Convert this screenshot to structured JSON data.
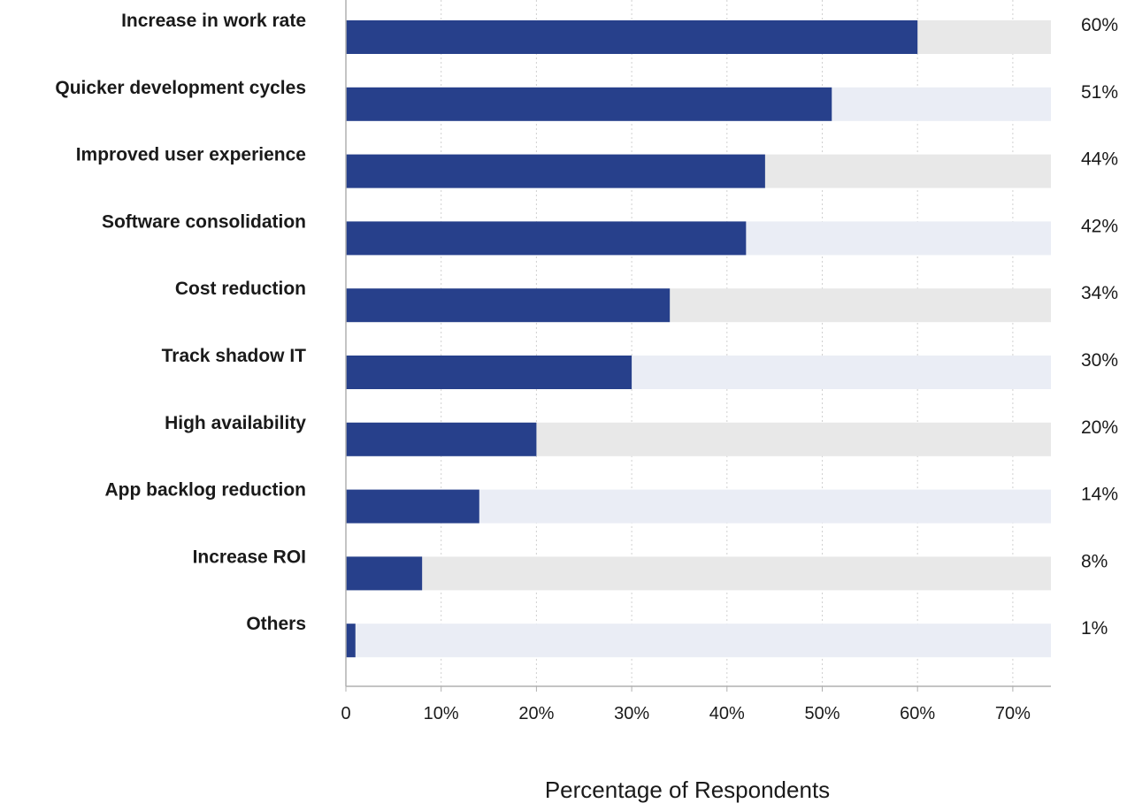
{
  "chart_data": {
    "type": "bar",
    "orientation": "horizontal",
    "title": "",
    "xlabel": "Percentage of Respondents",
    "ylabel": "",
    "xlim": [
      0,
      74
    ],
    "x_ticks": [
      0,
      10,
      20,
      30,
      40,
      50,
      60,
      70
    ],
    "x_tick_labels": [
      "0",
      "10%",
      "20%",
      "30%",
      "40%",
      "50%",
      "60%",
      "70%"
    ],
    "grid": "vertical dotted",
    "legend": "none",
    "categories": [
      "Increase in work rate",
      "Quicker development cycles",
      "Improved user experience",
      "Software consolidation",
      "Cost reduction",
      "Track shadow IT",
      "High availability",
      "App backlog reduction",
      "Increase ROI",
      "Others"
    ],
    "values": [
      60,
      51,
      44,
      42,
      34,
      30,
      20,
      14,
      8,
      1
    ],
    "value_labels": [
      "60%",
      "51%",
      "44%",
      "42%",
      "34%",
      "30%",
      "20%",
      "14%",
      "8%",
      "1%"
    ],
    "colors": {
      "bar": "#27408b",
      "track_even": "#e8e8e8",
      "track_odd": "#eaedf5",
      "axis": "#b0b0b0",
      "grid": "#d0d0d0"
    }
  }
}
